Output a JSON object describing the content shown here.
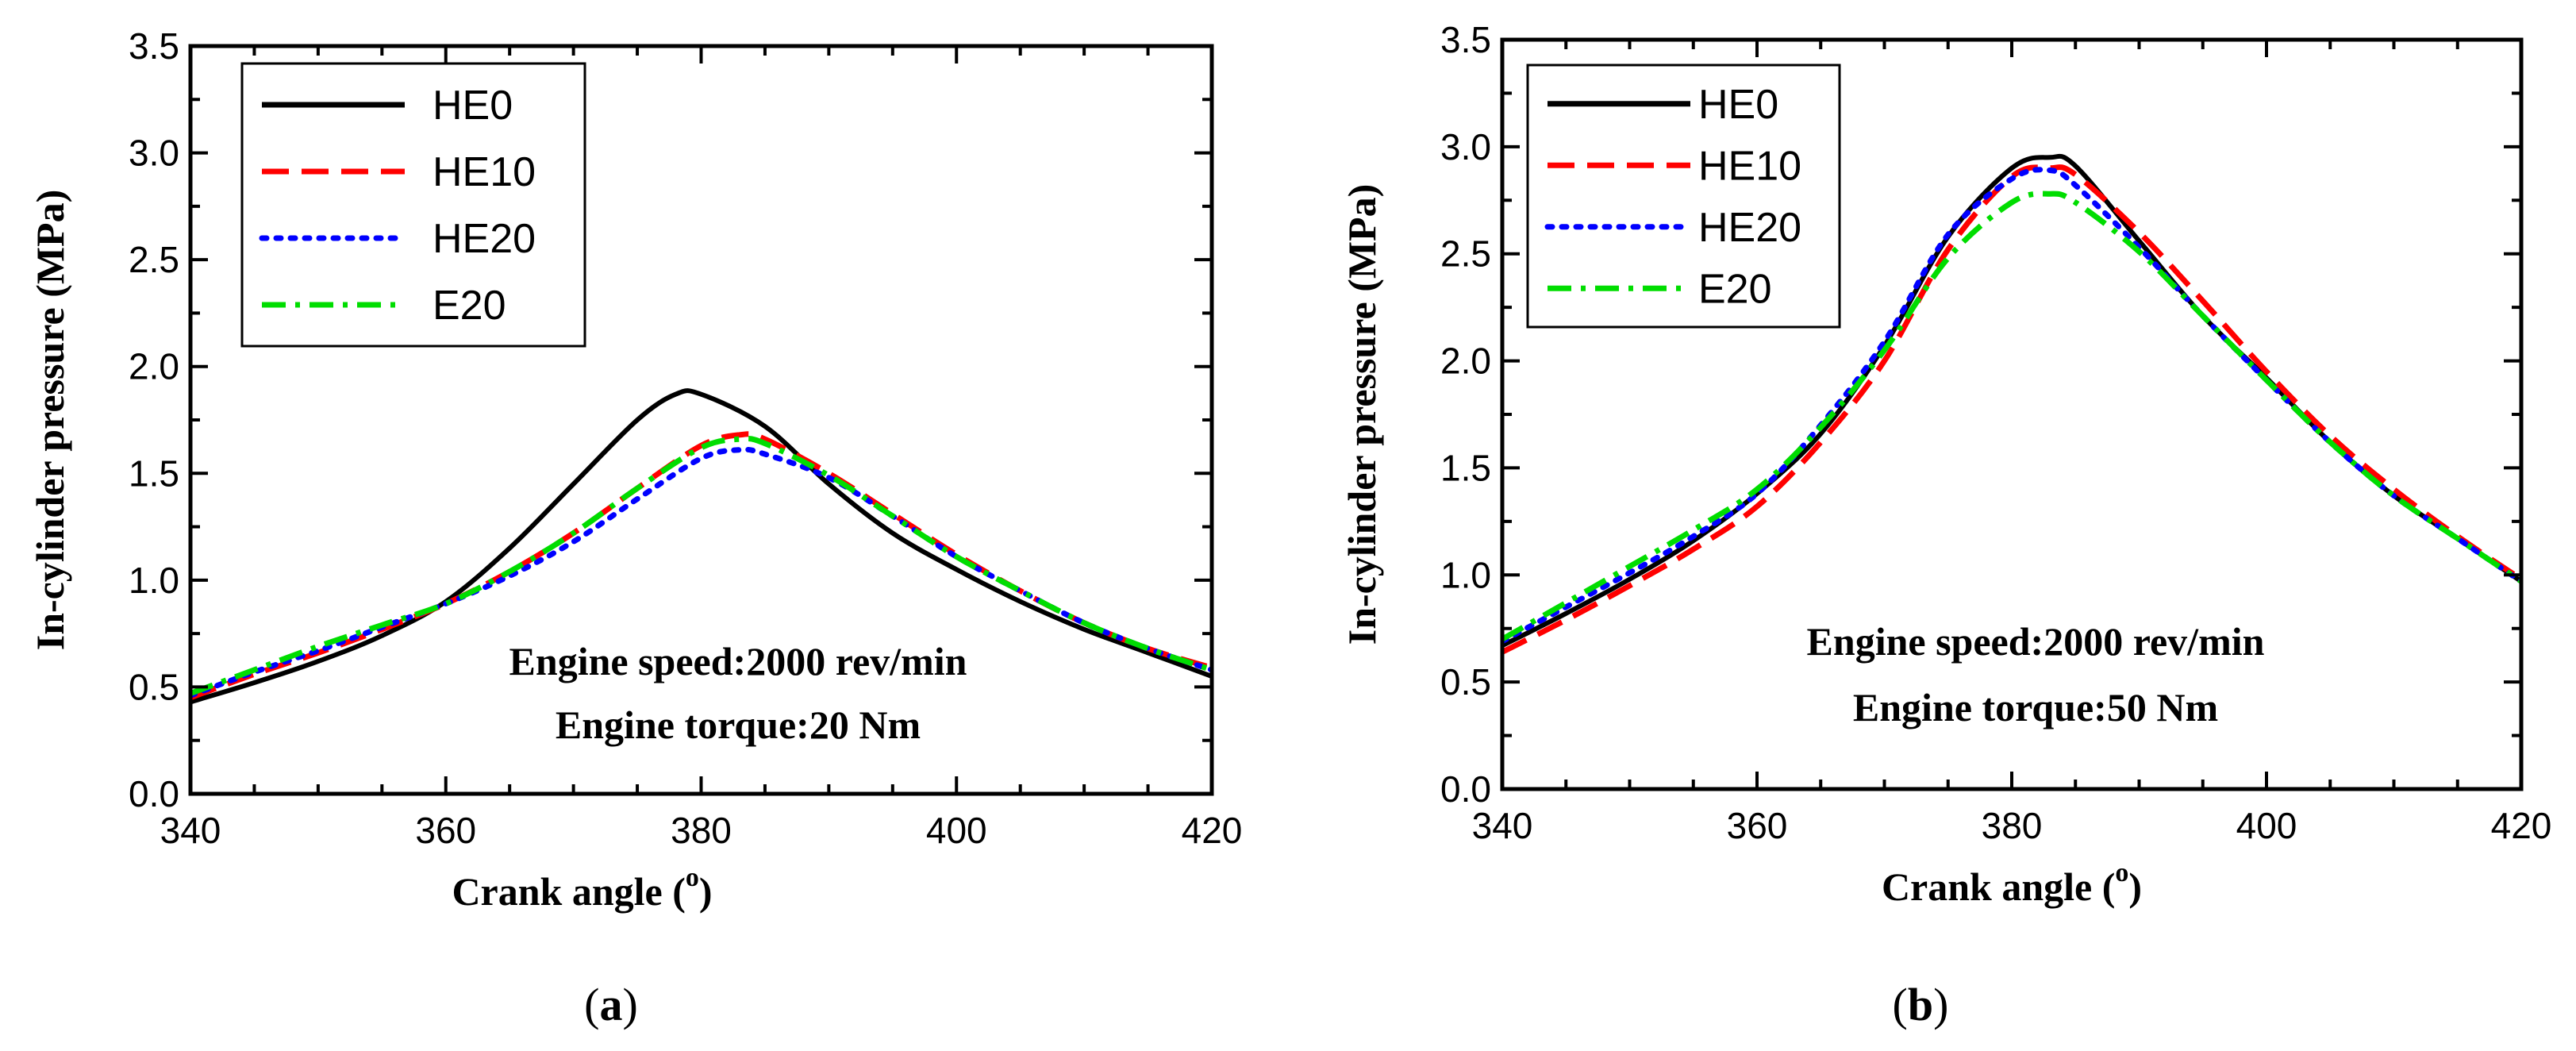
{
  "chart_data": [
    {
      "type": "line",
      "panel": "a",
      "title": "",
      "xlabel": "Crank angle (",
      "xlabel_sup": "o",
      "xlabel_end": ")",
      "ylabel": "In-cylinder pressure (MPa)",
      "xlim": [
        340,
        420
      ],
      "ylim": [
        0.0,
        3.5
      ],
      "xticks": [
        "340",
        "360",
        "380",
        "400",
        "420"
      ],
      "yticks": [
        "0.0",
        "0.5",
        "1.0",
        "1.5",
        "2.0",
        "2.5",
        "3.0",
        "3.5"
      ],
      "annotations": [
        "Engine speed:2000 rev/min",
        "Engine torque:20 Nm"
      ],
      "legend_position": "top-left",
      "series": [
        {
          "name": "HE0",
          "color": "#000000",
          "style": "solid",
          "x": [
            340,
            345,
            350,
            355,
            360,
            365,
            370,
            375,
            378,
            380,
            385,
            390,
            395,
            400,
            405,
            410,
            415,
            420
          ],
          "y": [
            0.43,
            0.52,
            0.62,
            0.74,
            0.9,
            1.15,
            1.45,
            1.75,
            1.87,
            1.87,
            1.72,
            1.45,
            1.22,
            1.05,
            0.9,
            0.77,
            0.66,
            0.55
          ]
        },
        {
          "name": "HE10",
          "color": "#ff0000",
          "style": "dash",
          "x": [
            340,
            345,
            350,
            355,
            360,
            365,
            370,
            375,
            380,
            383,
            385,
            390,
            395,
            400,
            405,
            410,
            415,
            420
          ],
          "y": [
            0.45,
            0.56,
            0.66,
            0.77,
            0.89,
            1.04,
            1.22,
            1.43,
            1.63,
            1.68,
            1.66,
            1.5,
            1.31,
            1.12,
            0.95,
            0.8,
            0.68,
            0.59
          ]
        },
        {
          "name": "HE20",
          "color": "#0000ff",
          "style": "dot",
          "x": [
            340,
            345,
            350,
            355,
            360,
            365,
            370,
            375,
            380,
            383,
            385,
            390,
            395,
            400,
            405,
            410,
            415,
            420
          ],
          "y": [
            0.46,
            0.57,
            0.67,
            0.78,
            0.89,
            1.02,
            1.18,
            1.38,
            1.57,
            1.61,
            1.59,
            1.48,
            1.3,
            1.11,
            0.95,
            0.8,
            0.68,
            0.58
          ]
        },
        {
          "name": "E20",
          "color": "#00dd00",
          "style": "dashdot",
          "x": [
            340,
            345,
            350,
            355,
            360,
            365,
            370,
            375,
            380,
            383,
            385,
            390,
            395,
            400,
            405,
            410,
            415,
            420
          ],
          "y": [
            0.47,
            0.58,
            0.69,
            0.79,
            0.89,
            1.04,
            1.22,
            1.43,
            1.62,
            1.66,
            1.64,
            1.49,
            1.3,
            1.11,
            0.95,
            0.8,
            0.68,
            0.58
          ]
        }
      ]
    },
    {
      "type": "line",
      "panel": "b",
      "title": "",
      "xlabel": "Crank angle (",
      "xlabel_sup": "o",
      "xlabel_end": ")",
      "ylabel": "In-cylinder pressure (MPa)",
      "xlim": [
        340,
        420
      ],
      "ylim": [
        0.0,
        3.5
      ],
      "xticks": [
        "340",
        "360",
        "380",
        "400",
        "420"
      ],
      "yticks": [
        "0.0",
        "0.5",
        "1.0",
        "1.5",
        "2.0",
        "2.5",
        "3.0",
        "3.5"
      ],
      "annotations": [
        "Engine speed:2000 rev/min",
        "Engine torque:50 Nm"
      ],
      "legend_position": "top-left",
      "series": [
        {
          "name": "HE0",
          "color": "#000000",
          "style": "solid",
          "x": [
            340,
            345,
            350,
            355,
            360,
            365,
            370,
            375,
            380,
            383,
            385,
            390,
            395,
            400,
            405,
            410,
            415,
            420
          ],
          "y": [
            0.67,
            0.82,
            0.98,
            1.16,
            1.38,
            1.66,
            2.07,
            2.58,
            2.9,
            2.95,
            2.91,
            2.56,
            2.21,
            1.92,
            1.62,
            1.37,
            1.17,
            0.97
          ]
        },
        {
          "name": "HE10",
          "color": "#ff0000",
          "style": "dash",
          "x": [
            340,
            345,
            350,
            355,
            360,
            365,
            370,
            375,
            380,
            383,
            385,
            390,
            395,
            400,
            405,
            410,
            415,
            420
          ],
          "y": [
            0.64,
            0.79,
            0.95,
            1.12,
            1.32,
            1.62,
            2.0,
            2.52,
            2.86,
            2.9,
            2.87,
            2.6,
            2.28,
            1.95,
            1.65,
            1.4,
            1.18,
            0.98
          ]
        },
        {
          "name": "HE20",
          "color": "#0000ff",
          "style": "dot",
          "x": [
            340,
            345,
            350,
            355,
            360,
            365,
            370,
            375,
            380,
            383,
            385,
            390,
            395,
            400,
            405,
            410,
            415,
            420
          ],
          "y": [
            0.69,
            0.85,
            1.01,
            1.18,
            1.38,
            1.7,
            2.09,
            2.59,
            2.85,
            2.89,
            2.82,
            2.53,
            2.21,
            1.91,
            1.62,
            1.37,
            1.17,
            0.97
          ]
        },
        {
          "name": "E20",
          "color": "#00dd00",
          "style": "dashdot",
          "x": [
            340,
            345,
            350,
            355,
            360,
            365,
            370,
            375,
            380,
            383,
            385,
            390,
            395,
            400,
            405,
            410,
            415,
            420
          ],
          "y": [
            0.7,
            0.87,
            1.04,
            1.21,
            1.4,
            1.69,
            2.05,
            2.48,
            2.74,
            2.78,
            2.74,
            2.51,
            2.21,
            1.91,
            1.62,
            1.37,
            1.17,
            0.97
          ]
        }
      ]
    }
  ],
  "panel_labels": [
    {
      "open": "(",
      "letter": "a",
      "close": ")"
    },
    {
      "open": "(",
      "letter": "b",
      "close": ")"
    }
  ]
}
